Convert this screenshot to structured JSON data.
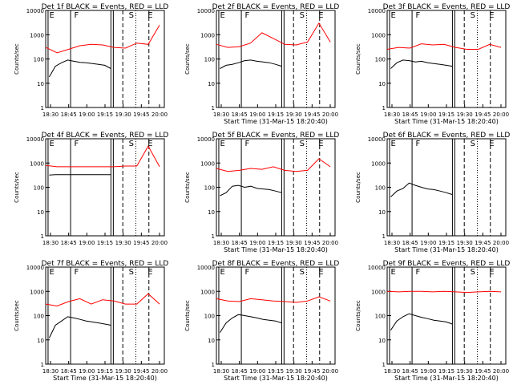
{
  "chart_data": [
    {
      "type": "line",
      "title": "Det 1f BLACK = Events, RED = LLD",
      "ylabel": "Counts/sec",
      "xlabel": "",
      "y_scale": "log",
      "ylim": [
        1,
        10000
      ],
      "y_ticks": [
        {
          "v": 1,
          "label": "1"
        },
        {
          "v": 10,
          "label": "10"
        },
        {
          "v": 100,
          "label": "100"
        },
        {
          "v": 1000,
          "label": "1000"
        },
        {
          "v": 10000,
          "label": "10000"
        }
      ],
      "x_ticks": [
        "18:30",
        "18:45",
        "19:00",
        "19:15",
        "19:30",
        "19:45",
        "20:00"
      ],
      "markers": [
        "E",
        "F",
        "S",
        "E"
      ],
      "series": [
        {
          "name": "Events",
          "color": "#000000",
          "x": [
            0,
            2,
            4,
            6,
            8,
            10,
            12,
            14,
            16,
            18,
            20
          ],
          "y": [
            18,
            50,
            70,
            90,
            80,
            72,
            70,
            65,
            60,
            55,
            40
          ]
        },
        {
          "name": "LLD",
          "color": "#ff0000",
          "x": [
            0,
            4,
            8,
            12,
            16,
            20,
            24,
            28,
            32,
            36,
            40
          ],
          "y": [
            300,
            180,
            250,
            350,
            400,
            380,
            300,
            280,
            450,
            400,
            2500
          ]
        }
      ]
    },
    {
      "type": "line",
      "title": "Det 2f BLACK = Events, RED = LLD",
      "ylabel": "Counts/sec",
      "xlabel": "Start Time (31-Mar-15 18:20:40)",
      "y_scale": "log",
      "ylim": [
        1,
        10000
      ],
      "y_ticks": [
        {
          "v": 1,
          "label": "1"
        },
        {
          "v": 10,
          "label": "10"
        },
        {
          "v": 100,
          "label": "100"
        },
        {
          "v": 1000,
          "label": "1000"
        },
        {
          "v": 10000,
          "label": "10000"
        }
      ],
      "x_ticks": [
        "18:30",
        "18:45",
        "19:00",
        "19:15",
        "19:30",
        "19:45",
        "20:00"
      ],
      "markers": [
        "E",
        "F",
        "S",
        "E"
      ],
      "series": [
        {
          "name": "Events",
          "color": "#000000",
          "x": [
            0,
            2,
            4,
            6,
            8,
            10,
            12,
            14,
            16,
            18,
            20
          ],
          "y": [
            40,
            55,
            60,
            70,
            85,
            90,
            80,
            75,
            70,
            60,
            50
          ]
        },
        {
          "name": "LLD",
          "color": "#ff0000",
          "x": [
            0,
            4,
            8,
            12,
            16,
            20,
            24,
            28,
            32,
            36,
            40
          ],
          "y": [
            400,
            300,
            320,
            450,
            1200,
            700,
            400,
            380,
            500,
            3000,
            500
          ]
        }
      ]
    },
    {
      "type": "line",
      "title": "Det 3f BLACK = Events, RED = LLD",
      "ylabel": "Counts/sec",
      "xlabel": "Start Time (31-Mar-15 18:20:40)",
      "y_scale": "log",
      "ylim": [
        1,
        10000
      ],
      "y_ticks": [
        {
          "v": 1,
          "label": "1"
        },
        {
          "v": 10,
          "label": "10"
        },
        {
          "v": 100,
          "label": "100"
        },
        {
          "v": 1000,
          "label": "1000"
        },
        {
          "v": 10000,
          "label": "10000"
        }
      ],
      "x_ticks": [
        "18:30",
        "18:45",
        "19:00",
        "19:15",
        "19:30",
        "19:45",
        "20:00"
      ],
      "markers": [
        "E",
        "F",
        "S",
        "E"
      ],
      "series": [
        {
          "name": "Events",
          "color": "#000000",
          "x": [
            0,
            2,
            4,
            6,
            8,
            10,
            12,
            14,
            16,
            18,
            20
          ],
          "y": [
            40,
            70,
            90,
            85,
            75,
            80,
            70,
            65,
            60,
            55,
            50
          ]
        },
        {
          "name": "LLD",
          "color": "#ff0000",
          "x": [
            0,
            4,
            8,
            12,
            16,
            20,
            24,
            28,
            32,
            36,
            40
          ],
          "y": [
            250,
            300,
            280,
            420,
            380,
            400,
            300,
            250,
            250,
            400,
            300
          ]
        }
      ]
    },
    {
      "type": "line",
      "title": "Det 4f BLACK = Events, RED = LLD",
      "ylabel": "Counts/sec",
      "xlabel": "",
      "y_scale": "log",
      "ylim": [
        1,
        10000
      ],
      "y_ticks": [
        {
          "v": 1,
          "label": "1"
        },
        {
          "v": 10,
          "label": "10"
        },
        {
          "v": 100,
          "label": "100"
        },
        {
          "v": 1000,
          "label": "1000"
        },
        {
          "v": 10000,
          "label": "10000"
        }
      ],
      "x_ticks": [
        "18:30",
        "18:45",
        "19:00",
        "19:15",
        "19:30",
        "19:45",
        "20:00"
      ],
      "markers": [
        "E",
        "F",
        "S",
        "E"
      ],
      "series": [
        {
          "name": "Events",
          "color": "#000000",
          "x": [
            0,
            2,
            4,
            6,
            8,
            10,
            12,
            14,
            16,
            18,
            20
          ],
          "y": [
            320,
            330,
            330,
            330,
            330,
            330,
            330,
            330,
            330,
            330,
            330
          ]
        },
        {
          "name": "LLD",
          "color": "#ff0000",
          "x": [
            0,
            4,
            8,
            12,
            16,
            20,
            24,
            28,
            32,
            36,
            40
          ],
          "y": [
            800,
            700,
            700,
            700,
            700,
            700,
            700,
            750,
            750,
            5000,
            700
          ]
        }
      ]
    },
    {
      "type": "line",
      "title": "Det 5f BLACK = Events, RED = LLD",
      "ylabel": "Counts/sec",
      "xlabel": "Start Time (31-Mar-15 18:20:40)",
      "y_scale": "log",
      "ylim": [
        1,
        10000
      ],
      "y_ticks": [
        {
          "v": 1,
          "label": "1"
        },
        {
          "v": 10,
          "label": "10"
        },
        {
          "v": 100,
          "label": "100"
        },
        {
          "v": 1000,
          "label": "1000"
        },
        {
          "v": 10000,
          "label": "10000"
        }
      ],
      "x_ticks": [
        "18:30",
        "18:45",
        "19:00",
        "19:15",
        "19:30",
        "19:45",
        "20:00"
      ],
      "markers": [
        "E",
        "F",
        "S",
        "E"
      ],
      "series": [
        {
          "name": "Events",
          "color": "#000000",
          "x": [
            0,
            2,
            4,
            6,
            8,
            10,
            12,
            14,
            16,
            18,
            20
          ],
          "y": [
            45,
            60,
            110,
            120,
            100,
            110,
            90,
            85,
            80,
            70,
            60
          ]
        },
        {
          "name": "LLD",
          "color": "#ff0000",
          "x": [
            0,
            4,
            8,
            12,
            16,
            20,
            24,
            28,
            32,
            36,
            40
          ],
          "y": [
            600,
            450,
            500,
            600,
            550,
            700,
            500,
            450,
            500,
            1500,
            700
          ]
        }
      ]
    },
    {
      "type": "line",
      "title": "Det 6f BLACK = Events, RED = LLD",
      "ylabel": "Counts/sec",
      "xlabel": "Start Time (31-Mar-15 18:20:40)",
      "y_scale": "log",
      "ylim": [
        1,
        10000
      ],
      "y_ticks": [
        {
          "v": 1,
          "label": "1"
        },
        {
          "v": 10,
          "label": "10"
        },
        {
          "v": 100,
          "label": "100"
        },
        {
          "v": 1000,
          "label": "1000"
        },
        {
          "v": 10000,
          "label": "10000"
        }
      ],
      "x_ticks": [
        "18:30",
        "18:45",
        "19:00",
        "19:15",
        "19:30",
        "19:45",
        "20:00"
      ],
      "markers": [
        "E",
        "F",
        "S",
        "E"
      ],
      "series": [
        {
          "name": "Events",
          "color": "#000000",
          "x": [
            0,
            2,
            4,
            6,
            8,
            10,
            12,
            14,
            16,
            18,
            20
          ],
          "y": [
            40,
            70,
            90,
            150,
            120,
            100,
            85,
            80,
            70,
            60,
            50
          ]
        },
        {
          "name": "LLD",
          "color": "#ff0000",
          "x": [],
          "y": []
        }
      ]
    },
    {
      "type": "line",
      "title": "Det 7f BLACK = Events, RED = LLD",
      "ylabel": "Counts/sec",
      "xlabel": "Start Time (31-Mar-15 18:20:40)",
      "y_scale": "log",
      "ylim": [
        1,
        10000
      ],
      "y_ticks": [
        {
          "v": 1,
          "label": "1"
        },
        {
          "v": 10,
          "label": "10"
        },
        {
          "v": 100,
          "label": "100"
        },
        {
          "v": 1000,
          "label": "1000"
        },
        {
          "v": 10000,
          "label": "10000"
        }
      ],
      "x_ticks": [
        "18:30",
        "18:45",
        "19:00",
        "19:15",
        "19:30",
        "19:45",
        "20:00"
      ],
      "markers": [
        "E",
        "F",
        "S",
        "E"
      ],
      "series": [
        {
          "name": "Events",
          "color": "#000000",
          "x": [
            0,
            2,
            4,
            6,
            8,
            10,
            12,
            14,
            16,
            18,
            20
          ],
          "y": [
            12,
            40,
            60,
            90,
            80,
            70,
            60,
            55,
            50,
            45,
            40
          ]
        },
        {
          "name": "LLD",
          "color": "#ff0000",
          "x": [
            0,
            4,
            8,
            12,
            16,
            20,
            24,
            28,
            32,
            36,
            40
          ],
          "y": [
            300,
            250,
            380,
            500,
            300,
            450,
            400,
            300,
            300,
            800,
            300
          ]
        }
      ]
    },
    {
      "type": "line",
      "title": "Det 8f BLACK = Events, RED = LLD",
      "ylabel": "Counts/sec",
      "xlabel": "Start Time (31-Mar-15 18:20:40)",
      "y_scale": "log",
      "ylim": [
        1,
        10000
      ],
      "y_ticks": [
        {
          "v": 1,
          "label": "1"
        },
        {
          "v": 10,
          "label": "10"
        },
        {
          "v": 100,
          "label": "100"
        },
        {
          "v": 1000,
          "label": "1000"
        },
        {
          "v": 10000,
          "label": "10000"
        }
      ],
      "x_ticks": [
        "18:30",
        "18:45",
        "19:00",
        "19:15",
        "19:30",
        "19:45",
        "20:00"
      ],
      "markers": [
        "E",
        "F",
        "S",
        "E"
      ],
      "series": [
        {
          "name": "Events",
          "color": "#000000",
          "x": [
            0,
            2,
            4,
            6,
            8,
            10,
            12,
            14,
            16,
            18,
            20
          ],
          "y": [
            20,
            50,
            80,
            110,
            100,
            90,
            80,
            70,
            65,
            60,
            50
          ]
        },
        {
          "name": "LLD",
          "color": "#ff0000",
          "x": [
            0,
            4,
            8,
            12,
            16,
            20,
            24,
            28,
            32,
            36,
            40
          ],
          "y": [
            500,
            400,
            380,
            500,
            450,
            400,
            380,
            350,
            400,
            600,
            400
          ]
        }
      ]
    },
    {
      "type": "line",
      "title": "Det 9f BLACK = Events, RED = LLD",
      "ylabel": "Counts/sec",
      "xlabel": "Start Time (31-Mar-15 18:20:40)",
      "y_scale": "log",
      "ylim": [
        1,
        10000
      ],
      "y_ticks": [
        {
          "v": 1,
          "label": "1"
        },
        {
          "v": 10,
          "label": "10"
        },
        {
          "v": 100,
          "label": "100"
        },
        {
          "v": 1000,
          "label": "1000"
        },
        {
          "v": 10000,
          "label": "10000"
        }
      ],
      "x_ticks": [
        "18:30",
        "18:45",
        "19:00",
        "19:15",
        "19:30",
        "19:45",
        "20:00"
      ],
      "markers": [
        "E",
        "F",
        "S",
        "E"
      ],
      "series": [
        {
          "name": "Events",
          "color": "#000000",
          "x": [
            0,
            2,
            4,
            6,
            8,
            10,
            12,
            14,
            16,
            18,
            20
          ],
          "y": [
            25,
            60,
            90,
            120,
            100,
            85,
            75,
            65,
            60,
            55,
            45
          ]
        },
        {
          "name": "LLD",
          "color": "#ff0000",
          "x": [
            0,
            4,
            8,
            12,
            16,
            20,
            24,
            28,
            32,
            36,
            40
          ],
          "y": [
            1000,
            950,
            1000,
            1000,
            950,
            1000,
            950,
            900,
            950,
            1000,
            950
          ]
        }
      ]
    }
  ]
}
